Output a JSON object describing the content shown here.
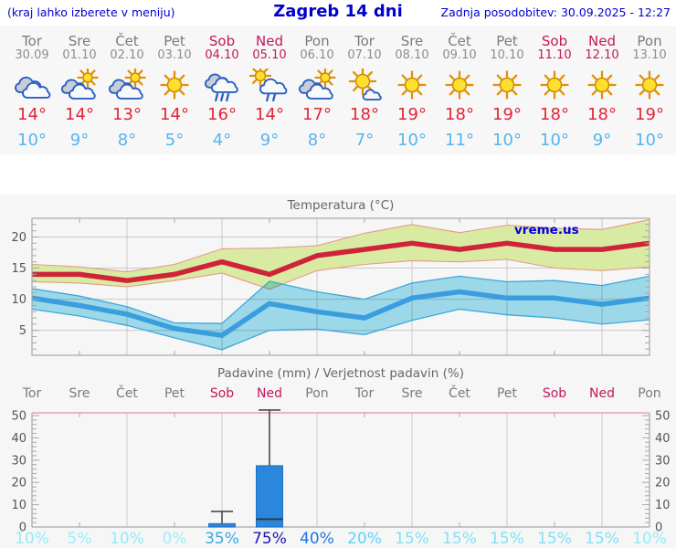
{
  "header": {
    "left_note": "(kraj lahko izberete v meniju)",
    "title": "Zagreb 14 dni",
    "updated": "Zadnja posodobitev: 30.09.2025 - 12:27"
  },
  "colors": {
    "header_blue": "#0000cc",
    "weekday_gray": "#7b7b7b",
    "weekend_red": "#c2185b",
    "tmax_red": "#e02537",
    "tmin_blue": "#55b5ee",
    "line_red": "#cf2438",
    "line_blue": "#3a9ede",
    "band_green": "#d9eba3",
    "band_green_edge": "#e59a86",
    "band_cyan": "#a3e0f2",
    "band_cyan_edge": "#3fa6da",
    "bar_blue": "#2b87dd",
    "grid_gray": "#c9c9c9",
    "axis_gray": "#a8a8a8",
    "tick_label_gray": "#555555",
    "title_gray": "#666666",
    "watermark_blue": "#0000dd",
    "precip_top_border": "#e8a0b0"
  },
  "days": [
    {
      "name": "Tor",
      "date": "30.09",
      "icon": "cloudy",
      "tmax": "14°",
      "tmin": "10°",
      "weekend": false,
      "precip_prob": "10%",
      "prob_color": "#93eaf7"
    },
    {
      "name": "Sre",
      "date": "01.10",
      "icon": "partly-sunny",
      "tmax": "14°",
      "tmin": "9°",
      "weekend": false,
      "precip_prob": "5%",
      "prob_color": "#9deef8"
    },
    {
      "name": "Čet",
      "date": "02.10",
      "icon": "partly-sunny",
      "tmax": "13°",
      "tmin": "8°",
      "weekend": false,
      "precip_prob": "10%",
      "prob_color": "#93eaf7"
    },
    {
      "name": "Pet",
      "date": "03.10",
      "icon": "sunny",
      "tmax": "14°",
      "tmin": "5°",
      "weekend": false,
      "precip_prob": "0%",
      "prob_color": "#9deef8"
    },
    {
      "name": "Sob",
      "date": "04.10",
      "icon": "rain",
      "tmax": "16°",
      "tmin": "4°",
      "weekend": true,
      "precip_prob": "35%",
      "prob_color": "#39a8e8"
    },
    {
      "name": "Ned",
      "date": "05.10",
      "icon": "sun-rain",
      "tmax": "14°",
      "tmin": "9°",
      "weekend": true,
      "precip_prob": "75%",
      "prob_color": "#1b15b5"
    },
    {
      "name": "Pon",
      "date": "06.10",
      "icon": "partly-sunny",
      "tmax": "17°",
      "tmin": "8°",
      "weekend": false,
      "precip_prob": "40%",
      "prob_color": "#2177dd"
    },
    {
      "name": "Tor",
      "date": "07.10",
      "icon": "sun-cloud",
      "tmax": "18°",
      "tmin": "7°",
      "weekend": false,
      "precip_prob": "20%",
      "prob_color": "#5fd3f4"
    },
    {
      "name": "Sre",
      "date": "08.10",
      "icon": "sunny",
      "tmax": "19°",
      "tmin": "10°",
      "weekend": false,
      "precip_prob": "15%",
      "prob_color": "#82e2f5"
    },
    {
      "name": "Čet",
      "date": "09.10",
      "icon": "sunny",
      "tmax": "18°",
      "tmin": "11°",
      "weekend": false,
      "precip_prob": "15%",
      "prob_color": "#82e2f5"
    },
    {
      "name": "Pet",
      "date": "10.10",
      "icon": "sunny",
      "tmax": "19°",
      "tmin": "10°",
      "weekend": false,
      "precip_prob": "15%",
      "prob_color": "#82e2f5"
    },
    {
      "name": "Sob",
      "date": "11.10",
      "icon": "sunny",
      "tmax": "18°",
      "tmin": "10°",
      "weekend": true,
      "precip_prob": "15%",
      "prob_color": "#82e2f5"
    },
    {
      "name": "Ned",
      "date": "12.10",
      "icon": "sunny",
      "tmax": "18°",
      "tmin": "9°",
      "weekend": true,
      "precip_prob": "15%",
      "prob_color": "#82e2f5"
    },
    {
      "name": "Pon",
      "date": "13.10",
      "icon": "sunny",
      "tmax": "19°",
      "tmin": "10°",
      "weekend": false,
      "precip_prob": "10%",
      "prob_color": "#93eaf7"
    }
  ],
  "chart_data": [
    {
      "type": "line",
      "title": "Temperatura (°C)",
      "watermark": "vreme.us",
      "ylim": [
        1,
        23
      ],
      "yticks": [
        5,
        10,
        15,
        20
      ],
      "x_days": 14,
      "grid": true,
      "series": [
        {
          "name": "temp_max",
          "values": [
            14,
            14,
            13,
            14,
            16,
            14,
            17,
            18,
            19,
            18,
            19,
            18,
            18,
            19
          ]
        },
        {
          "name": "temp_max_band_upper",
          "values": [
            15.6,
            15.2,
            14.4,
            15.6,
            18.1,
            18.2,
            18.6,
            20.6,
            22.0,
            20.7,
            21.9,
            21.4,
            21.2,
            22.8
          ]
        },
        {
          "name": "temp_max_band_lower",
          "values": [
            12.8,
            12.6,
            12.0,
            13.0,
            14.2,
            11.6,
            14.6,
            15.6,
            16.2,
            16.0,
            16.4,
            15.0,
            14.6,
            15.2
          ]
        },
        {
          "name": "temp_min",
          "values": [
            10.2,
            9,
            7.6,
            5.3,
            4.2,
            9.3,
            8,
            7,
            10.2,
            11.2,
            10.2,
            10.2,
            9.2,
            10.2
          ]
        },
        {
          "name": "temp_min_band_upper",
          "values": [
            11.7,
            10.5,
            8.8,
            6.2,
            6.1,
            12.9,
            11.2,
            10.0,
            12.6,
            13.7,
            12.8,
            13.0,
            12.2,
            13.7
          ]
        },
        {
          "name": "temp_min_band_lower",
          "values": [
            8.4,
            7.3,
            5.8,
            3.8,
            1.9,
            5.0,
            5.2,
            4.3,
            6.6,
            8.4,
            7.5,
            7.0,
            6.0,
            6.7
          ]
        }
      ]
    },
    {
      "type": "bar",
      "title": "Padavine (mm) / Verjetnost padavin (%)",
      "categories": [
        "Tor",
        "Sre",
        "Čet",
        "Pet",
        "Sob",
        "Ned",
        "Pon",
        "Tor",
        "Sre",
        "Čet",
        "Pet",
        "Sob",
        "Ned",
        "Pon"
      ],
      "values": [
        0,
        0,
        0,
        0,
        1.5,
        27.5,
        0,
        0,
        0,
        0,
        0,
        0,
        0,
        0
      ],
      "whisker_high": [
        0,
        0,
        0,
        0,
        7,
        52.5,
        0,
        0,
        0,
        0,
        0,
        0,
        0,
        0
      ],
      "median": [
        0,
        0,
        0,
        0,
        0,
        3.5,
        0,
        0,
        0,
        0,
        0,
        0,
        0,
        0
      ],
      "probabilities": [
        "10%",
        "5%",
        "10%",
        "0%",
        "35%",
        "75%",
        "40%",
        "20%",
        "15%",
        "15%",
        "15%",
        "15%",
        "15%",
        "10%"
      ],
      "ylim": [
        0,
        50
      ],
      "yticks": [
        0,
        10,
        20,
        30,
        40,
        50
      ]
    }
  ]
}
